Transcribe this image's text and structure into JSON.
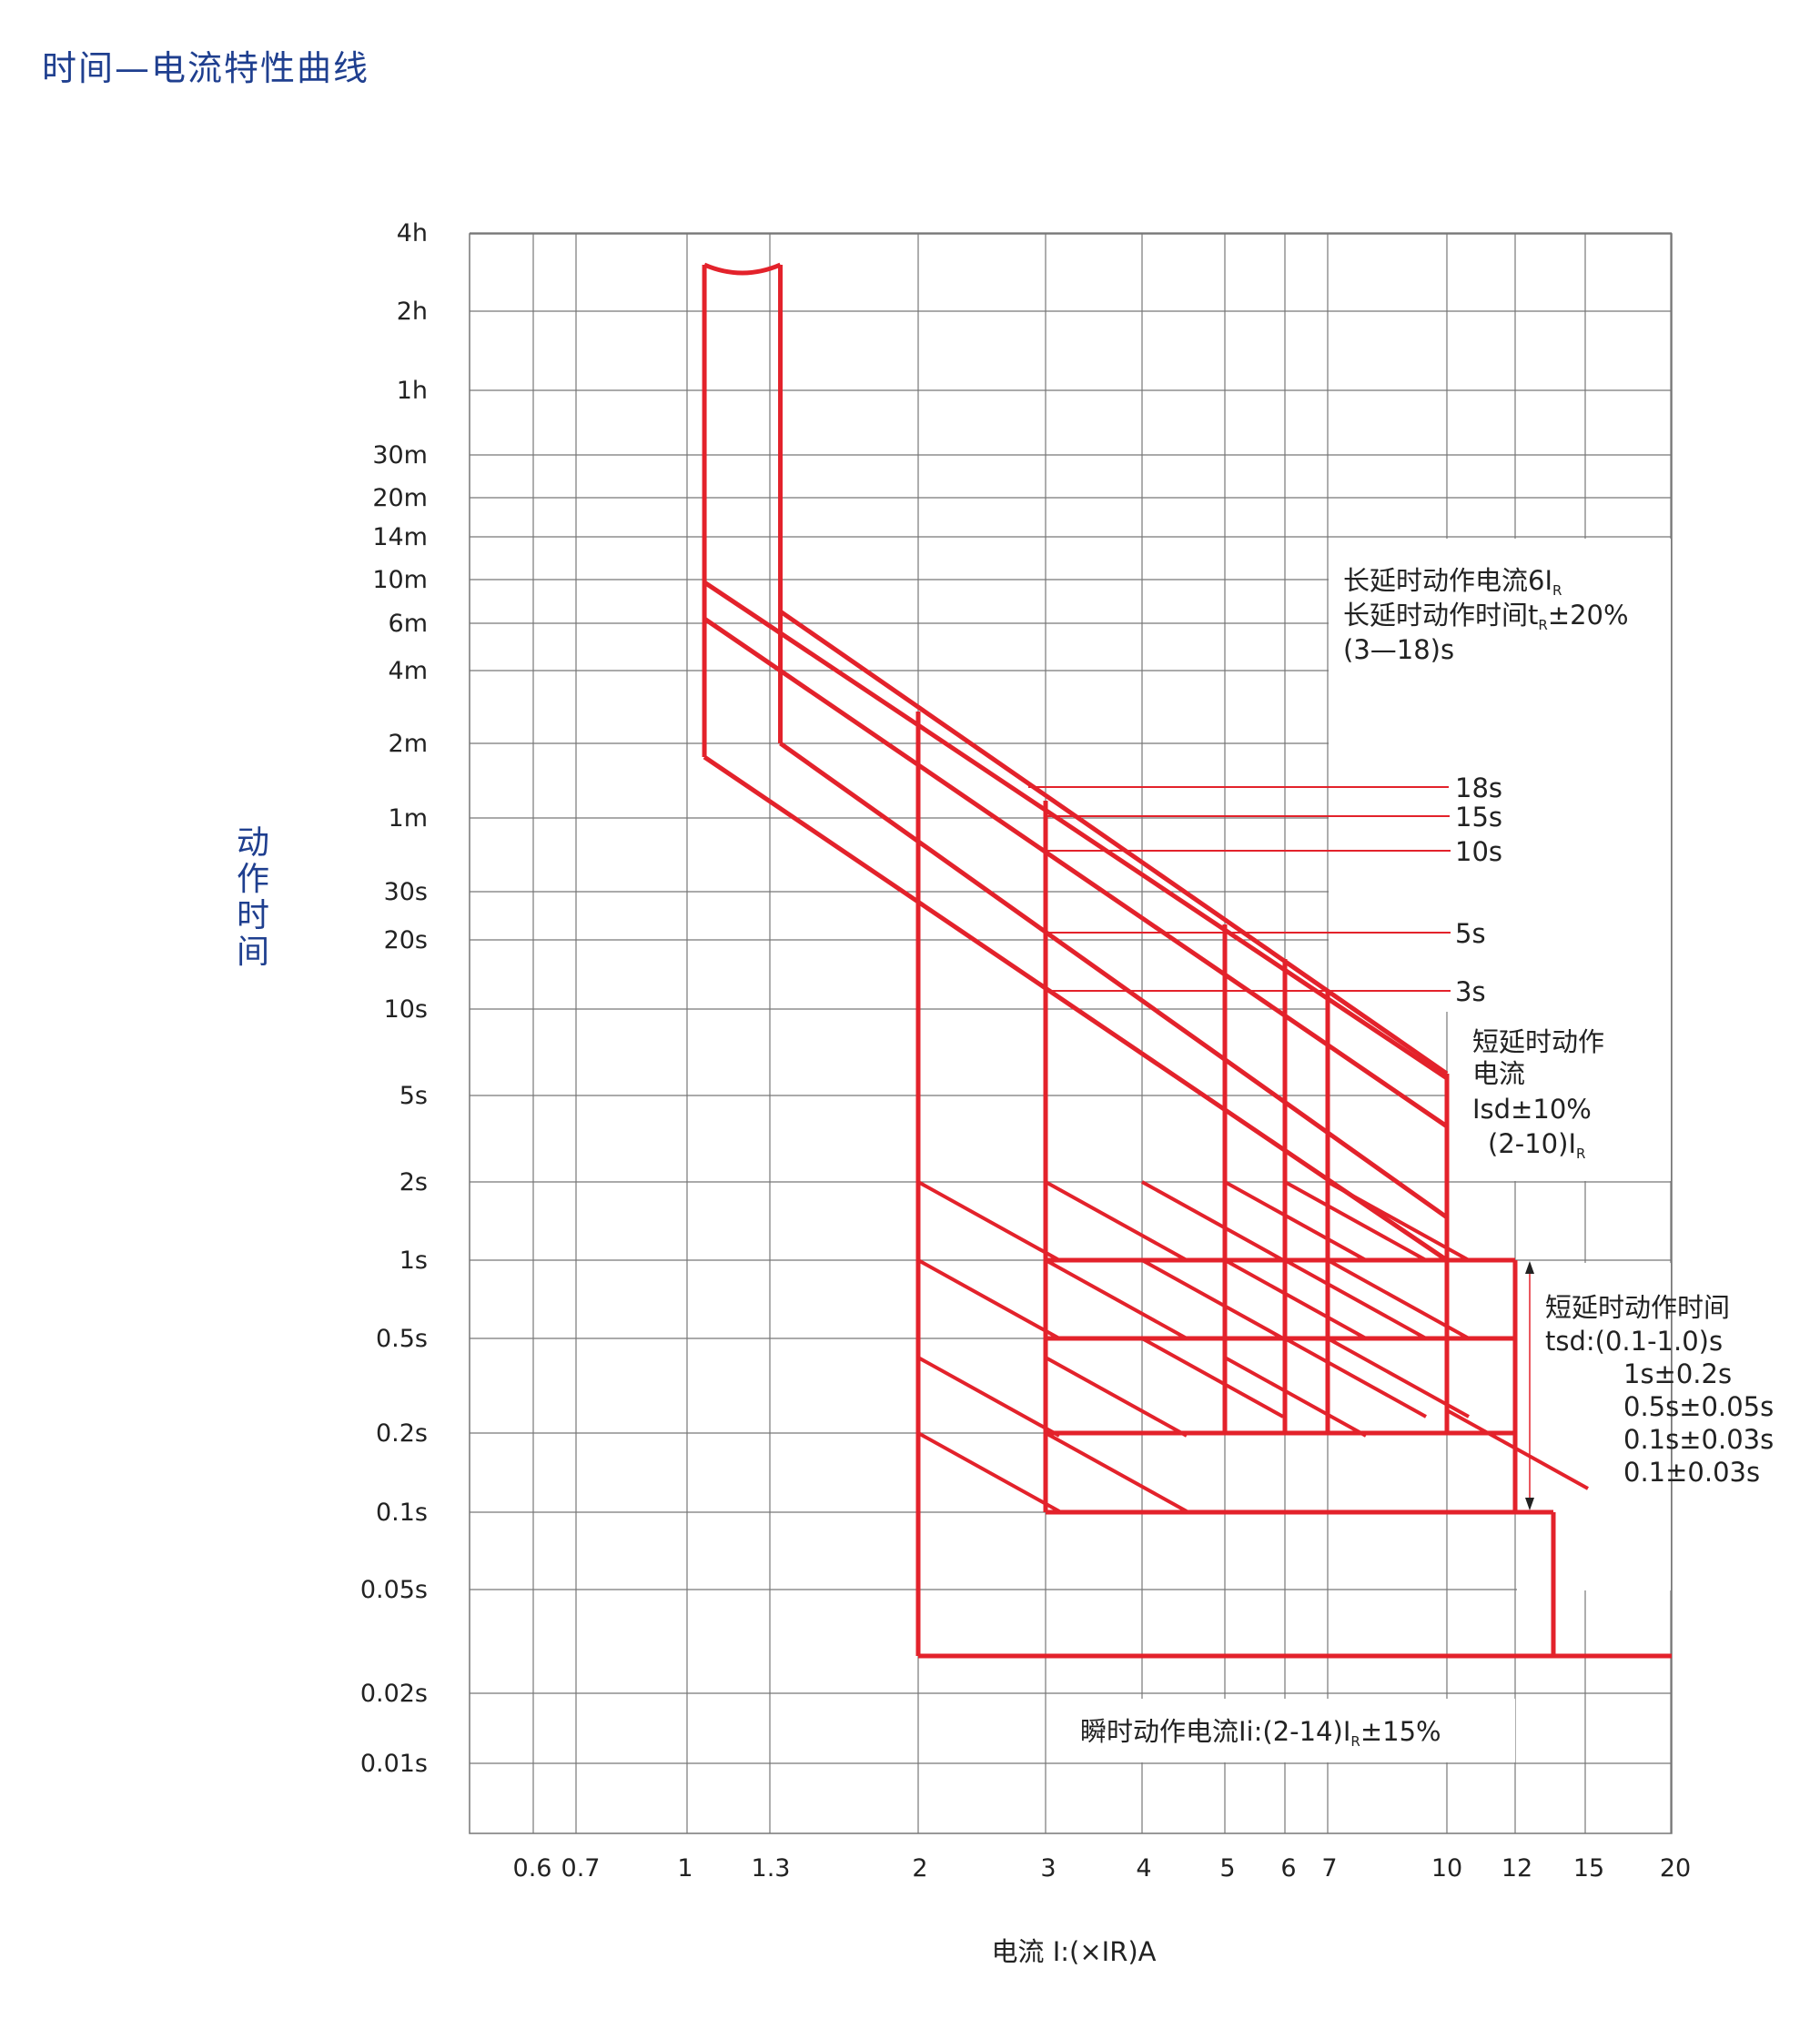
{
  "title": "时间—电流特性曲线",
  "chart_data": {
    "type": "line",
    "ylabel": "动作时间",
    "xlabel": "电流 I:(×IR)A",
    "y_ticks": [
      "4h",
      "2h",
      "1h",
      "30m",
      "20m",
      "14m",
      "10m",
      "6m",
      "4m",
      "2m",
      "1m",
      "30s",
      "20s",
      "10s",
      "5s",
      "2s",
      "1s",
      "0.5s",
      "0.2s",
      "0.1s",
      "0.05s",
      "0.02s",
      "0.01s"
    ],
    "x_ticks": [
      "0.6",
      "0.7",
      "1",
      "1.3",
      "2",
      "3",
      "4",
      "5",
      "6",
      "7",
      "10",
      "12",
      "15",
      "20"
    ],
    "x_scale": "log",
    "xlim": [
      0.5,
      20
    ],
    "colors": {
      "curve": "#e3222b",
      "grid": "#777777",
      "text": "#222222",
      "title": "#1f3f8f"
    },
    "annotations": {
      "long_delay": {
        "line1": "长延时动作电流6I",
        "line1_sub": "R",
        "line2": "长延时动作时间t",
        "line2_sub": "R",
        "line2_tail": "±20%",
        "line3": "(3—18)s"
      },
      "short_current": {
        "line1": "短延时动作",
        "line2": "电流",
        "line3": "Isd±10%",
        "line4": "(2-10)I",
        "line4_sub": "R"
      },
      "short_time": {
        "line1": "短延时动作时间",
        "line2": "tsd:(0.1-1.0)s",
        "line3": "1s±0.2s",
        "line4": "0.5s±0.05s",
        "line5": "0.1s±0.03s",
        "line6": "0.1±0.03s"
      },
      "instant": {
        "text": "瞬时动作电流Ii:(2-14)I",
        "sub": "R",
        "tail": "±15%"
      }
    },
    "long_delay_settings": [
      "18s",
      "15s",
      "10s",
      "5s",
      "3s"
    ],
    "short_delay_time_levels_s": [
      1,
      0.5,
      0.2,
      0.1
    ],
    "short_delay_current_levels_xIR": [
      2,
      3,
      4,
      5,
      6,
      7,
      10
    ],
    "instant_trip_range_xIR": [
      2,
      14
    ]
  }
}
